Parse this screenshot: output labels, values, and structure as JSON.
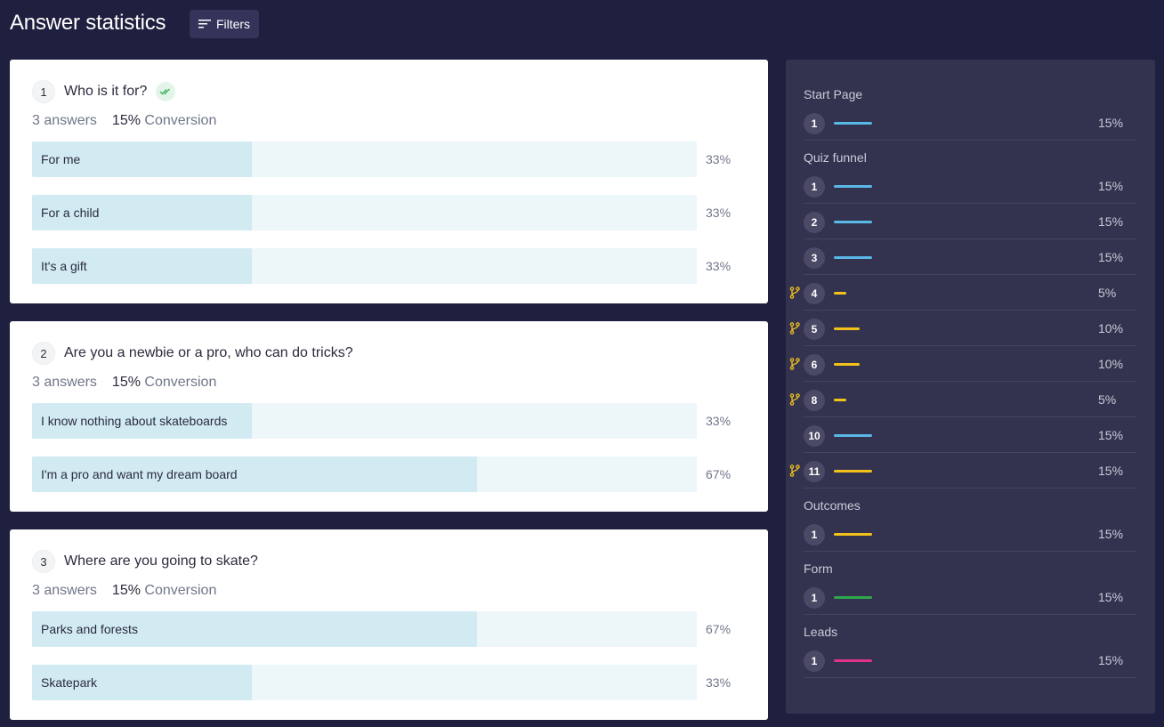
{
  "header": {
    "title": "Answer statistics",
    "filters_label": "Filters"
  },
  "colors": {
    "blue": "#5ab8e6",
    "yellow": "#f2c21b",
    "green": "#2ea84a",
    "pink": "#e0338a"
  },
  "questions": [
    {
      "num": "1",
      "title": "Who is it for?",
      "answers_text": "3 answers",
      "conversion_value": "15%",
      "conversion_word": "Conversion",
      "options": [
        {
          "label": "For me",
          "pct": "33%",
          "fill": 0.33
        },
        {
          "label": "For a child",
          "pct": "33%",
          "fill": 0.33
        },
        {
          "label": "It's a gift",
          "pct": "33%",
          "fill": 0.33
        }
      ]
    },
    {
      "num": "2",
      "title": "Are you a newbie or a pro, who can do tricks?",
      "answers_text": "3 answers",
      "conversion_value": "15%",
      "conversion_word": "Conversion",
      "options": [
        {
          "label": "I know nothing about skateboards",
          "pct": "33%",
          "fill": 0.33
        },
        {
          "label": "I'm a pro and want my dream board",
          "pct": "67%",
          "fill": 0.67
        }
      ]
    },
    {
      "num": "3",
      "title": "Where are you going to skate?",
      "answers_text": "3 answers",
      "conversion_value": "15%",
      "conversion_word": "Conversion",
      "options": [
        {
          "label": "Parks and forests",
          "pct": "67%",
          "fill": 0.67
        },
        {
          "label": "Skatepark",
          "pct": "33%",
          "fill": 0.33
        }
      ]
    }
  ],
  "sidebar": {
    "sections": [
      {
        "title": "Start Page",
        "rows": [
          {
            "num": "1",
            "pct": "15%",
            "color": "#5ab8e6",
            "level": 15,
            "branch": false
          }
        ]
      },
      {
        "title": "Quiz funnel",
        "rows": [
          {
            "num": "1",
            "pct": "15%",
            "color": "#5ab8e6",
            "level": 15,
            "branch": false
          },
          {
            "num": "2",
            "pct": "15%",
            "color": "#5ab8e6",
            "level": 15,
            "branch": false
          },
          {
            "num": "3",
            "pct": "15%",
            "color": "#5ab8e6",
            "level": 15,
            "branch": false
          },
          {
            "num": "4",
            "pct": "5%",
            "color": "#f2c21b",
            "level": 5,
            "branch": true
          },
          {
            "num": "5",
            "pct": "10%",
            "color": "#f2c21b",
            "level": 10,
            "branch": true
          },
          {
            "num": "6",
            "pct": "10%",
            "color": "#f2c21b",
            "level": 10,
            "branch": true
          },
          {
            "num": "8",
            "pct": "5%",
            "color": "#f2c21b",
            "level": 5,
            "branch": true
          },
          {
            "num": "10",
            "pct": "15%",
            "color": "#5ab8e6",
            "level": 15,
            "branch": false
          },
          {
            "num": "11",
            "pct": "15%",
            "color": "#f2c21b",
            "level": 15,
            "branch": true
          }
        ]
      },
      {
        "title": "Outcomes",
        "rows": [
          {
            "num": "1",
            "pct": "15%",
            "color": "#f2c21b",
            "level": 15,
            "branch": false
          }
        ]
      },
      {
        "title": "Form",
        "rows": [
          {
            "num": "1",
            "pct": "15%",
            "color": "#2ea84a",
            "level": 15,
            "branch": false
          }
        ]
      },
      {
        "title": "Leads",
        "rows": [
          {
            "num": "1",
            "pct": "15%",
            "color": "#e0338a",
            "level": 15,
            "branch": false
          }
        ]
      }
    ]
  }
}
